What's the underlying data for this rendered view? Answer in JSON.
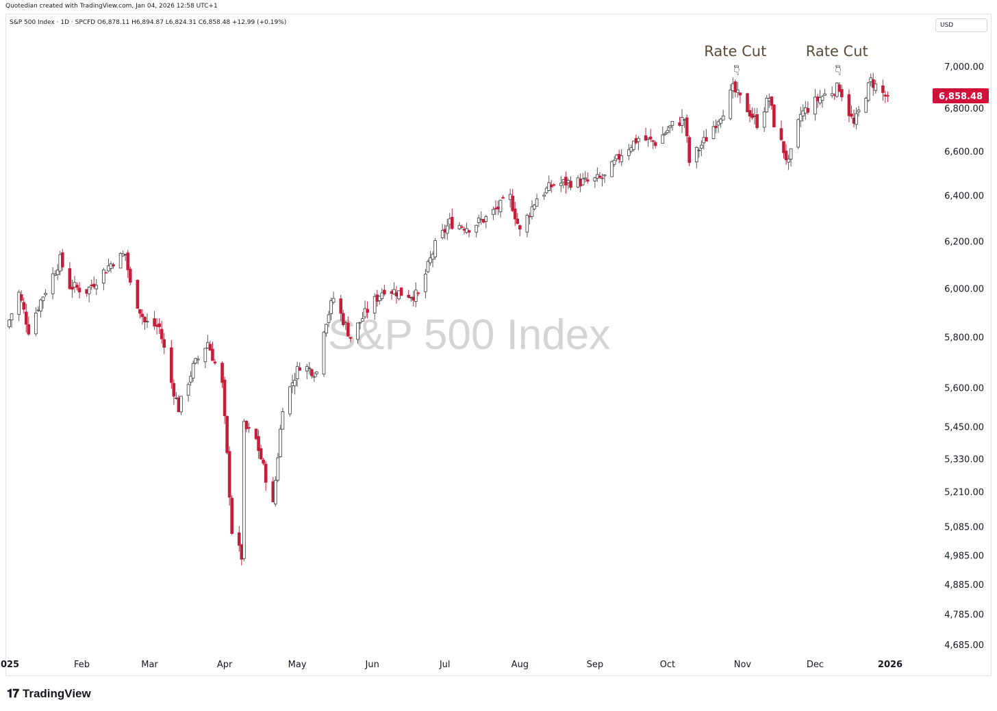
{
  "header": {
    "credit": "Quotedian created with TradingView.com, Jan 04, 2026 12:58 UTC+1",
    "legend": "S&P 500 Index · 1D · SPCFD  O6,878.11  H6,894.87  L6,824.31  C6,858.48  +12.99 (+0.19%)",
    "currency": "USD"
  },
  "footer": {
    "brand": "TradingView",
    "brand_icon": "tradingview-logo-icon"
  },
  "colors": {
    "up": "#ffffff",
    "down": "#c41e3a",
    "wick_down": "#c41e3a",
    "wick_up": "#555555",
    "last_price_bg": "#d0103a",
    "watermark": "#d4d4d4"
  },
  "chart_data": {
    "type": "candlestick",
    "title": "",
    "watermark": "S&P 500 Index",
    "y_scale": "log",
    "y_ticks": [
      "7,000.00",
      "6,800.00",
      "6,600.00",
      "6,400.00",
      "6,200.00",
      "6,000.00",
      "5,800.00",
      "5,600.00",
      "5,450.00",
      "5,330.00",
      "5,210.00",
      "5,085.00",
      "4,985.00",
      "4,885.00",
      "4,785.00",
      "4,685.00"
    ],
    "y_tick_values": [
      7000,
      6800,
      6600,
      6400,
      6200,
      6000,
      5800,
      5600,
      5450,
      5330,
      5210,
      5085,
      4985,
      4885,
      4785,
      4685
    ],
    "x_ticks": [
      "2025",
      "Feb",
      "Mar",
      "Apr",
      "May",
      "Jun",
      "Jul",
      "Aug",
      "Sep",
      "Oct",
      "Nov",
      "Dec",
      "2026"
    ],
    "x_tick_dates": [
      "2025-01-01",
      "2025-02-01",
      "2025-03-01",
      "2025-04-01",
      "2025-05-01",
      "2025-06-01",
      "2025-07-01",
      "2025-08-01",
      "2025-09-01",
      "2025-10-01",
      "2025-11-01",
      "2025-12-01",
      "2026-01-01"
    ],
    "last_price": "6,858.48",
    "last_price_value": 6858.48,
    "annotations": [
      {
        "label": "Rate Cut",
        "date": "2025-10-29",
        "icon": "pointing-hand-down-icon"
      },
      {
        "label": "Rate Cut",
        "date": "2025-12-10",
        "icon": "pointing-hand-down-icon"
      }
    ],
    "close_waypoints": [
      [
        "2025-01-02",
        5870
      ],
      [
        "2025-01-06",
        5980
      ],
      [
        "2025-01-10",
        5830
      ],
      [
        "2025-01-15",
        5950
      ],
      [
        "2025-01-23",
        6120
      ],
      [
        "2025-01-27",
        6010
      ],
      [
        "2025-02-03",
        5990
      ],
      [
        "2025-02-10",
        6070
      ],
      [
        "2025-02-14",
        6115
      ],
      [
        "2025-02-19",
        6145
      ],
      [
        "2025-02-21",
        6015
      ],
      [
        "2025-02-27",
        5860
      ],
      [
        "2025-03-05",
        5840
      ],
      [
        "2025-03-10",
        5620
      ],
      [
        "2025-03-13",
        5520
      ],
      [
        "2025-03-19",
        5680
      ],
      [
        "2025-03-25",
        5780
      ],
      [
        "2025-03-31",
        5610
      ],
      [
        "2025-04-04",
        5070
      ],
      [
        "2025-04-08",
        4980
      ],
      [
        "2025-04-09",
        5450
      ],
      [
        "2025-04-14",
        5400
      ],
      [
        "2025-04-21",
        5160
      ],
      [
        "2025-04-25",
        5530
      ],
      [
        "2025-05-02",
        5690
      ],
      [
        "2025-05-09",
        5660
      ],
      [
        "2025-05-12",
        5840
      ],
      [
        "2025-05-16",
        5960
      ],
      [
        "2025-05-23",
        5800
      ],
      [
        "2025-05-30",
        5910
      ],
      [
        "2025-06-06",
        6000
      ],
      [
        "2025-06-13",
        5980
      ],
      [
        "2025-06-20",
        5970
      ],
      [
        "2025-06-27",
        6180
      ],
      [
        "2025-07-03",
        6280
      ],
      [
        "2025-07-11",
        6260
      ],
      [
        "2025-07-18",
        6300
      ],
      [
        "2025-07-28",
        6390
      ],
      [
        "2025-08-01",
        6240
      ],
      [
        "2025-08-08",
        6390
      ],
      [
        "2025-08-15",
        6450
      ],
      [
        "2025-08-22",
        6460
      ],
      [
        "2025-08-29",
        6460
      ],
      [
        "2025-09-05",
        6480
      ],
      [
        "2025-09-12",
        6590
      ],
      [
        "2025-09-19",
        6660
      ],
      [
        "2025-09-26",
        6640
      ],
      [
        "2025-10-03",
        6720
      ],
      [
        "2025-10-08",
        6750
      ],
      [
        "2025-10-10",
        6550
      ],
      [
        "2025-10-17",
        6660
      ],
      [
        "2025-10-24",
        6790
      ],
      [
        "2025-10-28",
        6890
      ],
      [
        "2025-11-04",
        6780
      ],
      [
        "2025-11-07",
        6730
      ],
      [
        "2025-11-12",
        6850
      ],
      [
        "2025-11-14",
        6730
      ],
      [
        "2025-11-20",
        6540
      ],
      [
        "2025-11-25",
        6770
      ],
      [
        "2025-12-03",
        6850
      ],
      [
        "2025-12-11",
        6900
      ],
      [
        "2025-12-17",
        6720
      ],
      [
        "2025-12-24",
        6930
      ],
      [
        "2025-12-31",
        6845
      ]
    ],
    "start_date": "2025-01-02",
    "end_date": "2025-12-31"
  }
}
